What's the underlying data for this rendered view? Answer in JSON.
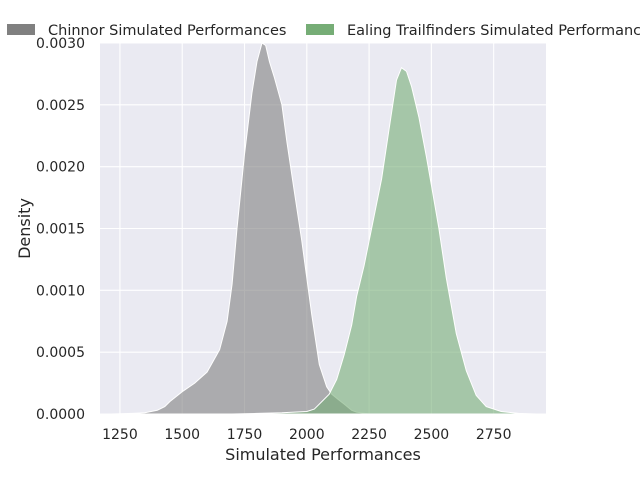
{
  "chart_data": {
    "type": "area",
    "title": "",
    "xlabel": "Simulated Performances",
    "ylabel": "Density",
    "xlim": [
      1170,
      2960
    ],
    "ylim": [
      0,
      0.003
    ],
    "x_ticks": [
      1250,
      1500,
      1750,
      2000,
      2250,
      2500,
      2750
    ],
    "y_ticks": [
      0.0,
      0.0005,
      0.001,
      0.0015,
      0.002,
      0.0025,
      0.003
    ],
    "y_tick_labels": [
      "0.0000",
      "0.0005",
      "0.0010",
      "0.0015",
      "0.0020",
      "0.0025",
      "0.0030"
    ],
    "x_tick_labels": [
      "1250",
      "1500",
      "1750",
      "2000",
      "2250",
      "2500",
      "2750"
    ],
    "grid": true,
    "legend_position": "top",
    "series": [
      {
        "name": "Chinnor Simulated Performances",
        "color": "#808080",
        "fill_color": "#a9a7ae",
        "x": [
          1215,
          1300,
          1350,
          1400,
          1430,
          1450,
          1500,
          1550,
          1600,
          1650,
          1680,
          1700,
          1720,
          1750,
          1780,
          1800,
          1820,
          1835,
          1850,
          1870,
          1900,
          1920,
          1950,
          1980,
          2000,
          2020,
          2050,
          2080,
          2100,
          2125,
          2150,
          2180,
          2200,
          2250
        ],
        "y": [
          0.0,
          5e-06,
          1e-05,
          3e-05,
          6e-05,
          0.0001,
          0.00018,
          0.00025,
          0.00034,
          0.00052,
          0.00075,
          0.00105,
          0.0015,
          0.0021,
          0.0026,
          0.00285,
          0.003,
          0.00298,
          0.00285,
          0.00272,
          0.0025,
          0.0022,
          0.0018,
          0.0014,
          0.0011,
          0.0008,
          0.0004,
          0.00022,
          0.00016,
          0.00012,
          8e-05,
          3e-05,
          1.5e-05,
          0.0
        ]
      },
      {
        "name": "Ealing Trailfinders Simulated Performances",
        "color": "#76ad76",
        "fill_color": "#b0c9b7",
        "x": [
          1700,
          1800,
          1900,
          2000,
          2030,
          2060,
          2090,
          2120,
          2150,
          2180,
          2200,
          2230,
          2260,
          2300,
          2330,
          2360,
          2380,
          2400,
          2420,
          2450,
          2480,
          2500,
          2530,
          2560,
          2600,
          2640,
          2680,
          2720,
          2780,
          2850,
          2920
        ],
        "y": [
          0.0,
          5e-06,
          1e-05,
          2e-05,
          4e-05,
          0.0001,
          0.00016,
          0.00028,
          0.00048,
          0.00072,
          0.00095,
          0.0012,
          0.0015,
          0.0019,
          0.0023,
          0.0027,
          0.0028,
          0.00277,
          0.00265,
          0.0024,
          0.00208,
          0.00185,
          0.0015,
          0.0011,
          0.00065,
          0.00035,
          0.00015,
          6e-05,
          2e-05,
          5e-06,
          0.0
        ]
      }
    ]
  }
}
